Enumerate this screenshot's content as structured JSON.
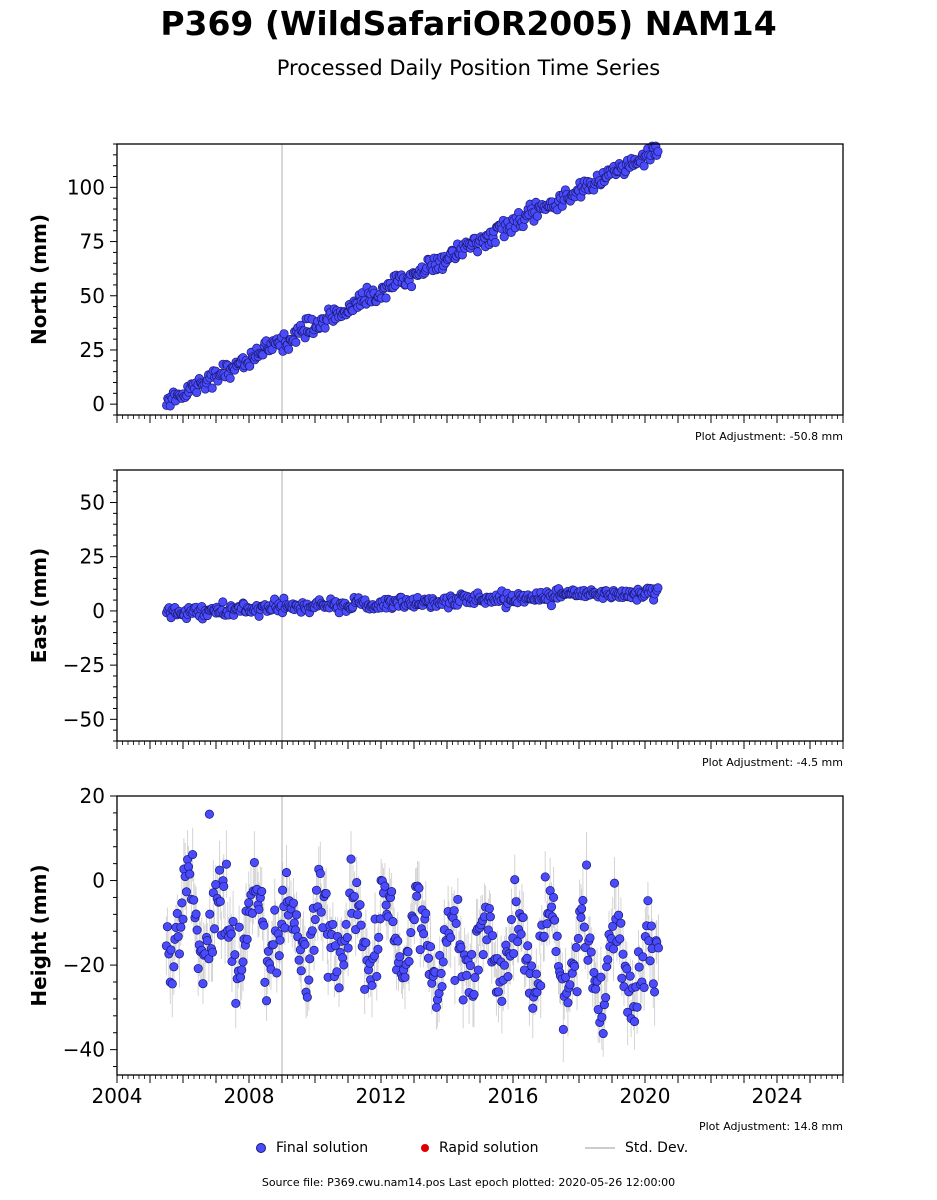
{
  "title": "P369 (WildSafariOR2005) NAM14",
  "subtitle": "Processed Daily Position Time Series",
  "colors": {
    "final": "#4a4aff",
    "final_edge": "#1a1a6e",
    "rapid": "#e00000",
    "stddev": "#b8b8b8",
    "event_line": "#cccccc"
  },
  "chart_data": [
    {
      "type": "scatter",
      "ylabel": "North (mm)",
      "xlim": [
        2004,
        2026
      ],
      "ylim": [
        -5,
        120
      ],
      "yticks": [
        0,
        25,
        50,
        75,
        100
      ],
      "event_x": 2009.0,
      "series": [
        {
          "name": "Final solution",
          "x_start": 2005.5,
          "x_end": 2020.4,
          "y_start": 1.5,
          "y_end": 117,
          "noise_mm": 2.0
        }
      ],
      "adjustment": "Plot Adjustment: -50.8 mm"
    },
    {
      "type": "scatter",
      "ylabel": "East (mm)",
      "xlim": [
        2004,
        2026
      ],
      "ylim": [
        -60,
        65
      ],
      "yticks": [
        -50,
        -25,
        0,
        25,
        50
      ],
      "event_x": 2009.0,
      "series": [
        {
          "name": "Final solution",
          "x_start": 2005.5,
          "x_end": 2020.4,
          "y_start": -1,
          "y_end": 9,
          "noise_mm": 1.6
        }
      ],
      "adjustment": "Plot Adjustment: -4.5 mm"
    },
    {
      "type": "scatter",
      "ylabel": "Height (mm)",
      "xlim": [
        2004,
        2026
      ],
      "ylim": [
        -46,
        20
      ],
      "yticks": [
        -40,
        -20,
        0,
        20
      ],
      "xticks": [
        2004,
        2008,
        2012,
        2016,
        2020,
        2024
      ],
      "event_x": 2009.0,
      "series": [
        {
          "name": "Final solution",
          "x_start": 2005.5,
          "x_end": 2020.4,
          "y_start": -9,
          "y_end": -20,
          "seasonal_amp_mm": 8,
          "noise_mm": 4.5,
          "outlier": [
            2006.8,
            15.7
          ]
        }
      ],
      "adjustment": "Plot Adjustment: 14.8 mm"
    }
  ],
  "legend": {
    "final": "Final solution",
    "rapid": "Rapid solution",
    "stddev": "Std. Dev."
  },
  "footer": "Source file: P369.cwu.nam14.pos  Last epoch plotted: 2020-05-26 12:00:00"
}
